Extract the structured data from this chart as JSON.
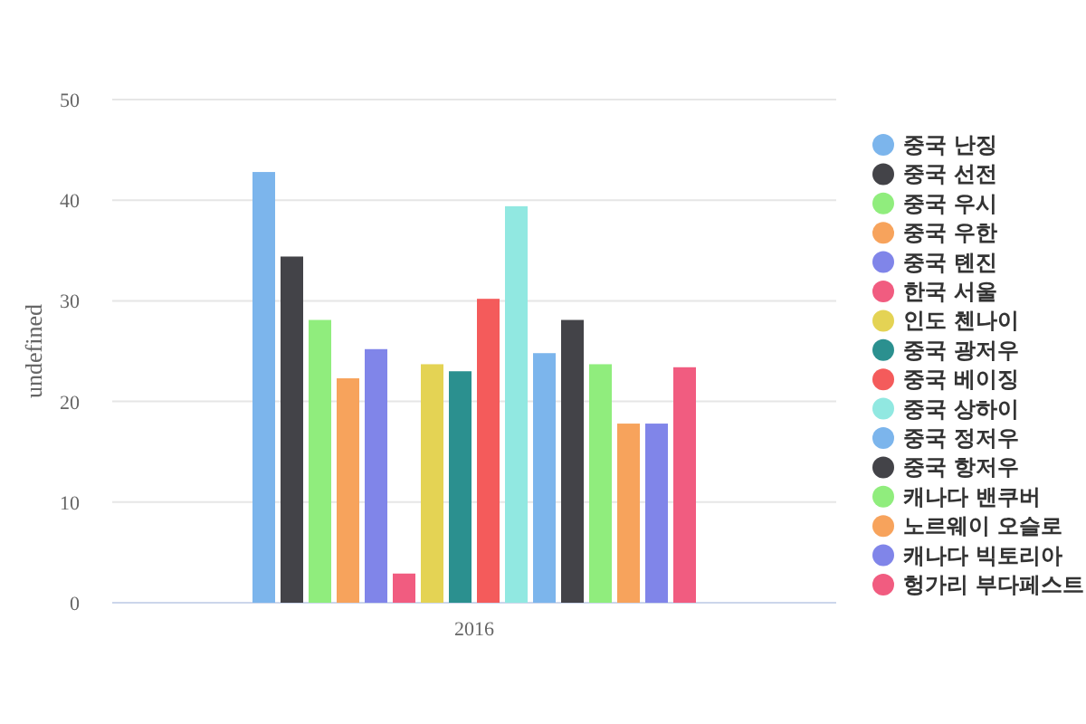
{
  "chart_data": {
    "type": "bar",
    "ylabel": "undefined",
    "categories": [
      "2016"
    ],
    "ylim": [
      0,
      50
    ],
    "yticks": [
      0,
      10,
      20,
      30,
      40,
      50
    ],
    "grid": "y",
    "legend": "right",
    "series": [
      {
        "name": "중국 난징",
        "color": "#7cb5ec",
        "values": [
          42.8
        ]
      },
      {
        "name": "중국 선전",
        "color": "#434348",
        "values": [
          34.4
        ]
      },
      {
        "name": "중국 우시",
        "color": "#90ed7d",
        "values": [
          28.1
        ]
      },
      {
        "name": "중국 우한",
        "color": "#f7a35c",
        "values": [
          22.3
        ]
      },
      {
        "name": "중국 톈진",
        "color": "#8085e9",
        "values": [
          25.2
        ]
      },
      {
        "name": "한국 서울",
        "color": "#f15c80",
        "values": [
          2.9
        ]
      },
      {
        "name": "인도 첸나이",
        "color": "#e4d354",
        "values": [
          23.7
        ]
      },
      {
        "name": "중국 광저우",
        "color": "#2b908f",
        "values": [
          23.0
        ]
      },
      {
        "name": "중국 베이징",
        "color": "#f45b5b",
        "values": [
          30.2
        ]
      },
      {
        "name": "중국 상하이",
        "color": "#91e8e1",
        "values": [
          39.4
        ]
      },
      {
        "name": "중국 정저우",
        "color": "#7cb5ec",
        "values": [
          24.8
        ]
      },
      {
        "name": "중국 항저우",
        "color": "#434348",
        "values": [
          28.1
        ]
      },
      {
        "name": "캐나다 밴쿠버",
        "color": "#90ed7d",
        "values": [
          23.7
        ]
      },
      {
        "name": "노르웨이 오슬로",
        "color": "#f7a35c",
        "values": [
          17.8
        ]
      },
      {
        "name": "캐나다 빅토리아",
        "color": "#8085e9",
        "values": [
          17.8
        ]
      },
      {
        "name": "헝가리 부다페스트",
        "color": "#f15c80",
        "values": [
          23.4
        ]
      }
    ]
  }
}
